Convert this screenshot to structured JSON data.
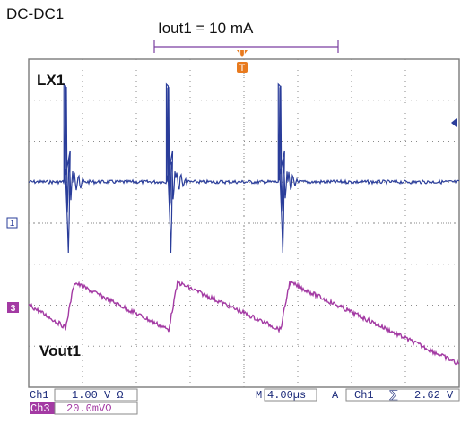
{
  "header": {
    "title": "DC-DC1",
    "condition": "Iout1 = 10 mA"
  },
  "channel_labels": {
    "lx": "LX1",
    "vout": "Vout1"
  },
  "markers": {
    "ch1": "1",
    "ch3": "3",
    "trigger_top": "U",
    "trigger_t": "T"
  },
  "status_bar": {
    "row1": {
      "ch": "Ch1",
      "scale": "1.00 V Ω",
      "m": "M",
      "timebase": "4.00µs",
      "mode": "A",
      "trig_ch": "Ch1",
      "slope": "⅀",
      "level": "2.62 V"
    },
    "row2": {
      "ch": "Ch3",
      "scale": "20.0mVΩ"
    }
  },
  "colors": {
    "ch1": "#2a3d9a",
    "ch3": "#a33aa3",
    "trigger": "#e87a1e",
    "grid": "#8a8a8a",
    "text": "#1b2a7a"
  },
  "chart_data": {
    "type": "line",
    "xlabel": "",
    "ylabel": "",
    "grid": true,
    "series": [
      {
        "name": "LX1",
        "description": "switching node, ~3 pulses with ringing",
        "pulse_times_div": [
          0.88,
          3.26,
          5.86
        ]
      },
      {
        "name": "Vout1",
        "description": "ripple sawtooth, 3 cycles",
        "ramp_times_div": [
          0.85,
          3.25,
          5.85
        ]
      }
    ],
    "timebase": "4.00µs"
  }
}
